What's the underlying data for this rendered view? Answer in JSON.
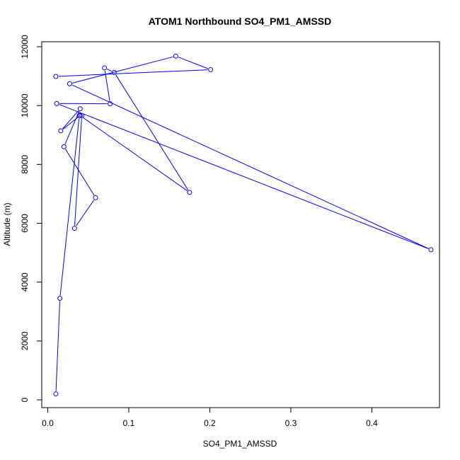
{
  "chart_data": {
    "type": "line",
    "title": "ATOM1 Northbound SO4_PM1_AMSSD",
    "xlabel": "SO4_PM1_AMSSD",
    "ylabel": "Altitude (m)",
    "xlim": [
      0,
      0.48
    ],
    "ylim": [
      0,
      12000
    ],
    "x_ticks": [
      0,
      0.1,
      0.2,
      0.3,
      0.4
    ],
    "x_tick_labels": [
      "0.0",
      "0.1",
      "0.2",
      "0.3",
      "0.4"
    ],
    "y_ticks": [
      0,
      2000,
      4000,
      6000,
      8000,
      10000,
      12000
    ],
    "y_tick_labels": [
      "0",
      "2000",
      "4000",
      "6000",
      "8000",
      "10000",
      "12000"
    ],
    "grid": false,
    "series": [
      {
        "color": "#0000ff",
        "marker": "open-circle",
        "points": [
          {
            "x": 0.01,
            "y": 200
          },
          {
            "x": 0.015,
            "y": 3450
          },
          {
            "x": 0.039,
            "y": 9660
          },
          {
            "x": 0.042,
            "y": 9660
          },
          {
            "x": 0.033,
            "y": 5830
          },
          {
            "x": 0.059,
            "y": 6870
          },
          {
            "x": 0.02,
            "y": 8600
          },
          {
            "x": 0.04,
            "y": 9890
          },
          {
            "x": 0.016,
            "y": 9140
          },
          {
            "x": 0.04,
            "y": 9660
          },
          {
            "x": 0.175,
            "y": 7050
          },
          {
            "x": 0.082,
            "y": 11130
          },
          {
            "x": 0.07,
            "y": 11280
          },
          {
            "x": 0.077,
            "y": 10060
          },
          {
            "x": 0.011,
            "y": 10070
          },
          {
            "x": 0.473,
            "y": 5100
          },
          {
            "x": 0.027,
            "y": 10740
          },
          {
            "x": 0.158,
            "y": 11680
          },
          {
            "x": 0.201,
            "y": 11220
          },
          {
            "x": 0.01,
            "y": 10990
          }
        ]
      }
    ]
  }
}
